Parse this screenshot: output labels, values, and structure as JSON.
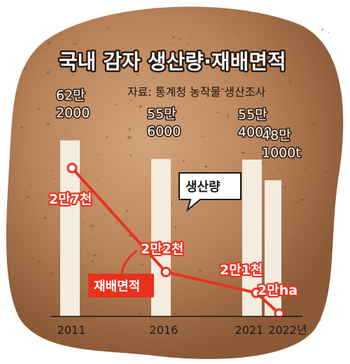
{
  "chart_data": {
    "type": "bar",
    "title": "국내 감자 생산량·재배면적",
    "source": "자료: 통계청 농작물 생산조사",
    "categories": [
      "2011",
      "2016",
      "2021",
      "2022년"
    ],
    "x": [
      2011,
      2016,
      2021,
      2022
    ],
    "series": [
      {
        "name": "생산량",
        "type": "bar",
        "unit": "t",
        "values": [
          622000,
          556000,
          554000,
          481000
        ],
        "labels": [
          [
            "62만",
            "2000"
          ],
          [
            "55만",
            "6000"
          ],
          [
            "55만",
            "4000"
          ],
          [
            "48만",
            "1000t"
          ]
        ]
      },
      {
        "name": "재배면적",
        "type": "line",
        "unit": "ha",
        "values": [
          27000,
          22000,
          21000,
          20000
        ],
        "labels": [
          "2만7천",
          "2만2천",
          "2만1천",
          "2만ha"
        ]
      }
    ],
    "colors": {
      "bar": "#f3ecdf",
      "line": "#e8321e",
      "potato": "#b9835a"
    }
  }
}
